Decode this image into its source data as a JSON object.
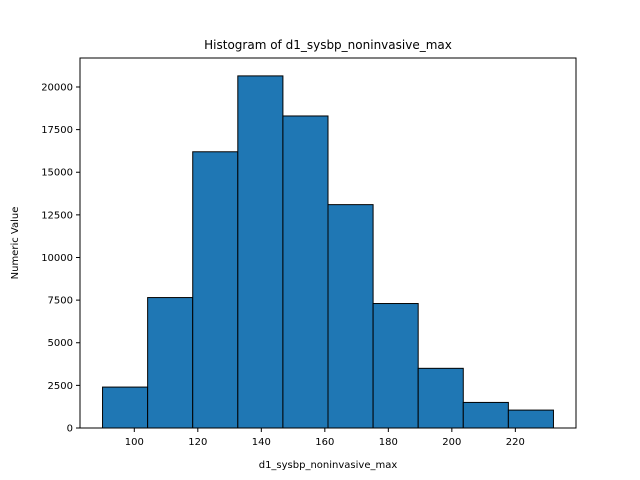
{
  "chart_data": {
    "type": "bar",
    "title": "Histogram of d1_sysbp_noninvasive_max",
    "xlabel": "d1_sysbp_noninvasive_max",
    "ylabel": "Numeric Value",
    "bin_edges": [
      90,
      104.2,
      118.4,
      132.6,
      146.8,
      161,
      175.2,
      189.4,
      203.6,
      217.8,
      232
    ],
    "values": [
      2400,
      7650,
      16200,
      20650,
      18300,
      13100,
      7300,
      3500,
      1500,
      1050
    ],
    "xlim": [
      82.9,
      239.1
    ],
    "ylim": [
      0,
      21700
    ],
    "xticks": [
      100,
      120,
      140,
      160,
      180,
      200,
      220
    ],
    "xtick_labels": [
      "100",
      "120",
      "140",
      "160",
      "180",
      "200",
      "220"
    ],
    "yticks": [
      0,
      2500,
      5000,
      7500,
      10000,
      12500,
      15000,
      17500,
      20000
    ],
    "ytick_labels": [
      "0",
      "2500",
      "5000",
      "7500",
      "10000",
      "12500",
      "15000",
      "17500",
      "20000"
    ],
    "grid": false,
    "bar_color": "#1f77b4",
    "edge_color": "#000000"
  }
}
